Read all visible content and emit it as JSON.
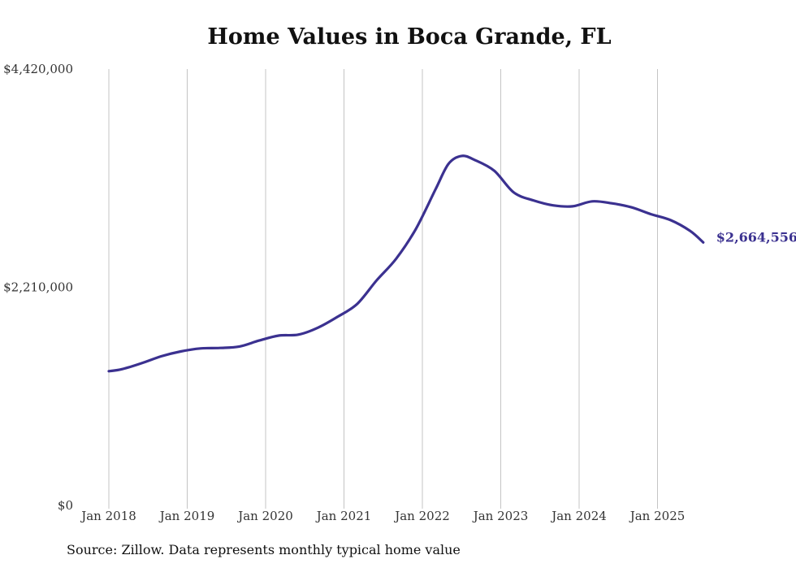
{
  "chart_data": {
    "type": "line",
    "title": "Home Values in Boca Grande, FL",
    "source": "Source: Zillow. Data represents monthly typical home value",
    "xlabel": "",
    "ylabel": "",
    "x_ticks": [
      "Jan 2018",
      "Jan 2019",
      "Jan 2020",
      "Jan 2021",
      "Jan 2022",
      "Jan 2023",
      "Jan 2024",
      "Jan 2025"
    ],
    "y_ticks": [
      "$0",
      "$2,210,000",
      "$4,420,000"
    ],
    "ylim": [
      0,
      4420000
    ],
    "xlim": [
      "2018-01",
      "2025-08"
    ],
    "grid": "vertical",
    "end_label": "$2,664,556",
    "colors": {
      "line": "#3b3190",
      "grid": "#c4c4c4"
    },
    "series": [
      {
        "values": [
          {
            "x": "2018-01",
            "y": 1360000
          },
          {
            "x": "2018-03",
            "y": 1380000
          },
          {
            "x": "2018-06",
            "y": 1440000
          },
          {
            "x": "2018-09",
            "y": 1510000
          },
          {
            "x": "2018-12",
            "y": 1560000
          },
          {
            "x": "2019-03",
            "y": 1590000
          },
          {
            "x": "2019-06",
            "y": 1595000
          },
          {
            "x": "2019-09",
            "y": 1610000
          },
          {
            "x": "2019-12",
            "y": 1670000
          },
          {
            "x": "2020-03",
            "y": 1720000
          },
          {
            "x": "2020-06",
            "y": 1730000
          },
          {
            "x": "2020-09",
            "y": 1800000
          },
          {
            "x": "2020-12",
            "y": 1910000
          },
          {
            "x": "2021-03",
            "y": 2040000
          },
          {
            "x": "2021-06",
            "y": 2280000
          },
          {
            "x": "2021-09",
            "y": 2500000
          },
          {
            "x": "2021-12",
            "y": 2800000
          },
          {
            "x": "2022-03",
            "y": 3200000
          },
          {
            "x": "2022-05",
            "y": 3460000
          },
          {
            "x": "2022-07",
            "y": 3540000
          },
          {
            "x": "2022-09",
            "y": 3500000
          },
          {
            "x": "2022-12",
            "y": 3390000
          },
          {
            "x": "2023-03",
            "y": 3170000
          },
          {
            "x": "2023-06",
            "y": 3090000
          },
          {
            "x": "2023-09",
            "y": 3040000
          },
          {
            "x": "2023-12",
            "y": 3030000
          },
          {
            "x": "2024-03",
            "y": 3080000
          },
          {
            "x": "2024-06",
            "y": 3060000
          },
          {
            "x": "2024-09",
            "y": 3020000
          },
          {
            "x": "2024-12",
            "y": 2950000
          },
          {
            "x": "2025-03",
            "y": 2890000
          },
          {
            "x": "2025-06",
            "y": 2780000
          },
          {
            "x": "2025-08",
            "y": 2664556
          }
        ]
      }
    ]
  }
}
